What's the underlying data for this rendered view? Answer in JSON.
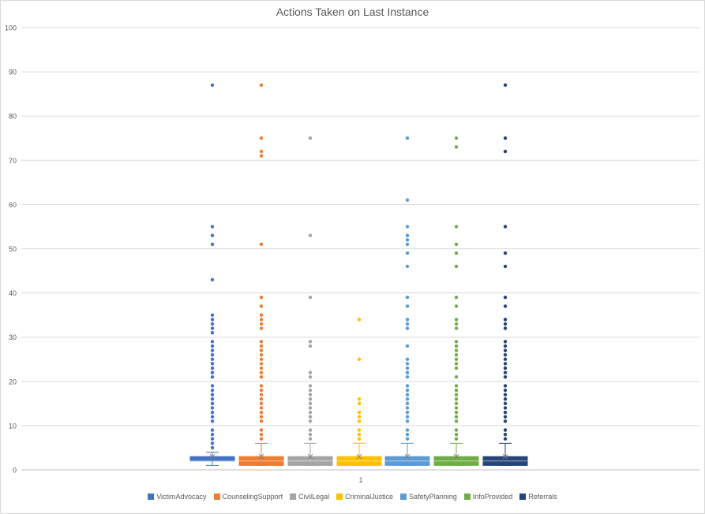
{
  "chart_data": {
    "type": "boxplot",
    "title": "Actions Taken on Last Instance",
    "categories": [
      "1"
    ],
    "ylim": [
      0,
      100
    ],
    "y_ticks": [
      0,
      10,
      20,
      30,
      40,
      50,
      60,
      70,
      80,
      90,
      100
    ],
    "grid": true,
    "legend_position": "bottom",
    "series": [
      {
        "name": "VictimAdvocacy",
        "color": "#4472c4",
        "box": {
          "whisker_low": 1,
          "q1": 2,
          "median": 2,
          "q3": 3,
          "whisker_high": 4,
          "mean": 3
        },
        "outliers": [
          5,
          6,
          7,
          8,
          9,
          11,
          12,
          13,
          14,
          15,
          16,
          17,
          18,
          19,
          21,
          22,
          23,
          24,
          25,
          26,
          27,
          28,
          29,
          31,
          32,
          33,
          34,
          35,
          43,
          51,
          53,
          55,
          87
        ]
      },
      {
        "name": "CounselingSupport",
        "color": "#ed7d31",
        "box": {
          "whisker_low": 1,
          "q1": 1,
          "median": 2,
          "q3": 3,
          "whisker_high": 6,
          "mean": 3
        },
        "outliers": [
          7,
          8,
          9,
          11,
          12,
          13,
          14,
          15,
          16,
          17,
          18,
          19,
          21,
          22,
          23,
          24,
          25,
          26,
          27,
          28,
          29,
          32,
          33,
          34,
          35,
          37,
          39,
          51,
          71,
          72,
          75,
          87
        ]
      },
      {
        "name": "CivilLegal",
        "color": "#a5a5a5",
        "box": {
          "whisker_low": 1,
          "q1": 1,
          "median": 2,
          "q3": 3,
          "whisker_high": 6,
          "mean": 3
        },
        "outliers": [
          7,
          8,
          9,
          11,
          12,
          13,
          14,
          15,
          16,
          17,
          18,
          19,
          21,
          22,
          28,
          29,
          39,
          53,
          75
        ]
      },
      {
        "name": "CriminalJustice",
        "color": "#ffc000",
        "box": {
          "whisker_low": 1,
          "q1": 1,
          "median": 2,
          "q3": 3,
          "whisker_high": 6,
          "mean": 3
        },
        "outliers": [
          7,
          8,
          9,
          11,
          12,
          13,
          15,
          16,
          25,
          34
        ]
      },
      {
        "name": "SafetyPlanning",
        "color": "#5b9bd5",
        "box": {
          "whisker_low": 1,
          "q1": 1,
          "median": 2,
          "q3": 3,
          "whisker_high": 6,
          "mean": 3
        },
        "outliers": [
          7,
          8,
          9,
          11,
          12,
          13,
          14,
          15,
          16,
          17,
          18,
          19,
          21,
          22,
          23,
          24,
          25,
          28,
          32,
          33,
          34,
          37,
          39,
          46,
          49,
          51,
          52,
          53,
          55,
          61,
          75
        ]
      },
      {
        "name": "InfoProvided",
        "color": "#70ad47",
        "box": {
          "whisker_low": 1,
          "q1": 1,
          "median": 2,
          "q3": 3,
          "whisker_high": 6,
          "mean": 3
        },
        "outliers": [
          7,
          8,
          9,
          11,
          12,
          13,
          14,
          15,
          16,
          17,
          18,
          19,
          21,
          23,
          24,
          25,
          26,
          27,
          28,
          29,
          32,
          33,
          34,
          37,
          39,
          46,
          49,
          51,
          55,
          73,
          75
        ]
      },
      {
        "name": "Referrals",
        "color": "#264478",
        "box": {
          "whisker_low": 1,
          "q1": 1,
          "median": 2,
          "q3": 3,
          "whisker_high": 6,
          "mean": 3
        },
        "outliers": [
          7,
          8,
          9,
          11,
          12,
          13,
          14,
          15,
          16,
          17,
          18,
          19,
          21,
          22,
          23,
          24,
          25,
          26,
          27,
          28,
          29,
          32,
          33,
          34,
          37,
          39,
          46,
          49,
          55,
          72,
          75,
          87
        ]
      }
    ]
  }
}
